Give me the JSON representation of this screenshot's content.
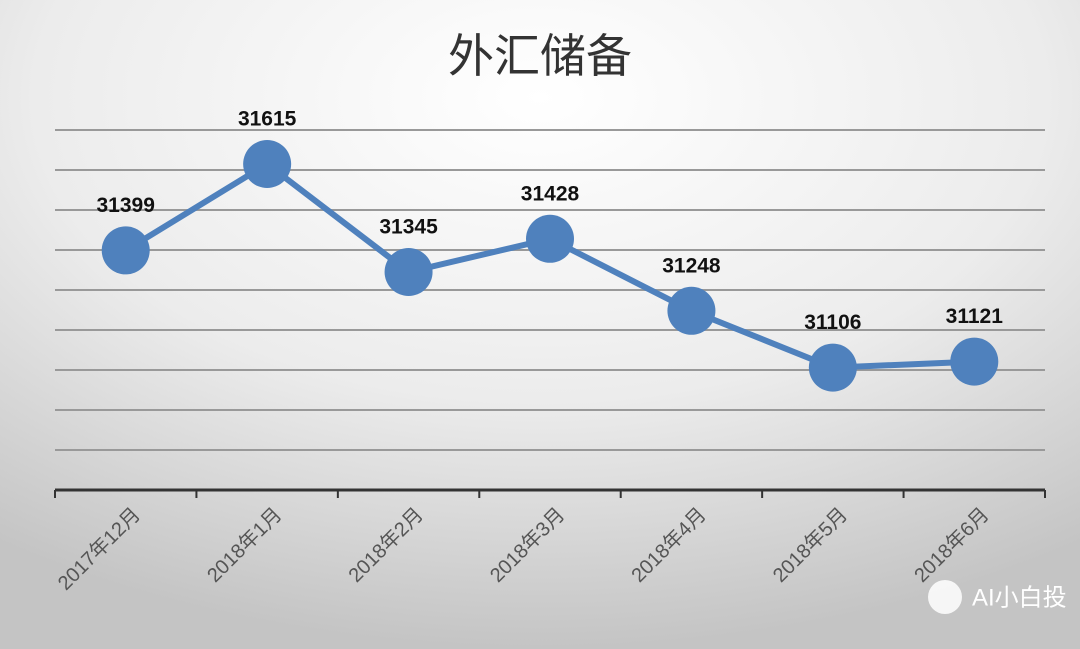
{
  "chart_data": {
    "type": "line",
    "title": "外汇储备",
    "categories": [
      "2017年12月",
      "2018年1月",
      "2018年2月",
      "2018年3月",
      "2018年4月",
      "2018年5月",
      "2018年6月"
    ],
    "values": [
      31399,
      31615,
      31345,
      31428,
      31248,
      31106,
      31121
    ],
    "color": "#4f81bd",
    "ylim": [
      30800,
      31700
    ],
    "yticks": [
      30800,
      30900,
      31000,
      31100,
      31200,
      31300,
      31400,
      31500,
      31600,
      31700
    ],
    "grid": true,
    "watermark": "AI小白投"
  }
}
